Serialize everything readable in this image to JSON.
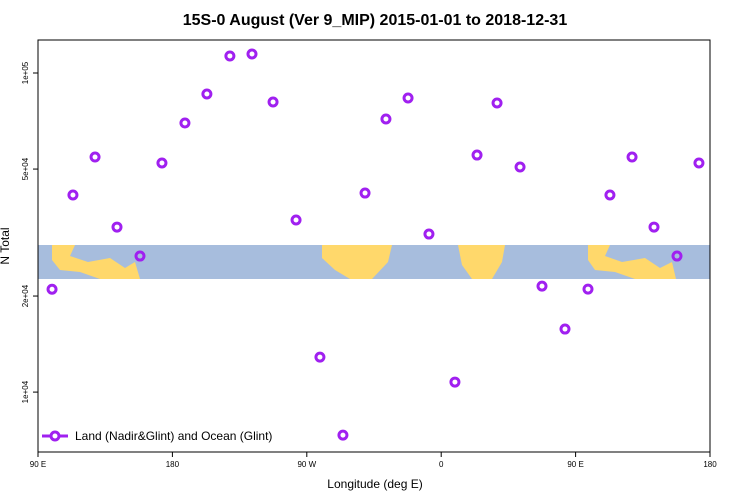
{
  "chart_data": {
    "type": "scatter",
    "title": "15S-0 August (Ver 9_MIP)   2015-01-01 to 2018-12-31",
    "x_label": "Longitude (deg E)",
    "y_label": "N Total",
    "y_log_scale": true,
    "xlim": [
      90,
      540
    ],
    "ylim": [
      6490,
      126900
    ],
    "xticks": [
      {
        "value": 90,
        "label": "90 E"
      },
      {
        "value": 180,
        "label": "180"
      },
      {
        "value": 270,
        "label": "90 W"
      },
      {
        "value": 360,
        "label": "0"
      },
      {
        "value": 450,
        "label": "90 E"
      },
      {
        "value": 540,
        "label": "180"
      }
    ],
    "yticks": [
      {
        "value": 10000,
        "label": "1e+04"
      },
      {
        "value": 20000,
        "label": "2e+04"
      },
      {
        "value": 50000,
        "label": "5e+04"
      },
      {
        "value": 100000,
        "label": "1e+05"
      }
    ],
    "legend_position": "bottom-left",
    "series": [
      {
        "name": "Land (Nadir&Glint) and Ocean (Glint)",
        "color": "#a020f0",
        "x": [
          99.4,
          113.4,
          128.2,
          142.9,
          158.3,
          173.0,
          188.4,
          203.1,
          218.5,
          233.3,
          247.4,
          262.8,
          278.8,
          294.2,
          309.0,
          323.0,
          337.8,
          351.8,
          369.2,
          384.0,
          397.4,
          412.8,
          427.5,
          442.9,
          458.3,
          473.0,
          487.8,
          502.5,
          517.9,
          532.6
        ],
        "values": [
          21000,
          41460,
          54530,
          32900,
          26690,
          52230,
          69700,
          85960,
          113100,
          114700,
          81130,
          34620,
          12870,
          7330,
          42050,
          71740,
          83490,
          31280,
          10750,
          55320,
          80540,
          50750,
          21490,
          15760,
          21030,
          41460,
          54530,
          32900,
          26690,
          52230
        ]
      }
    ]
  }
}
